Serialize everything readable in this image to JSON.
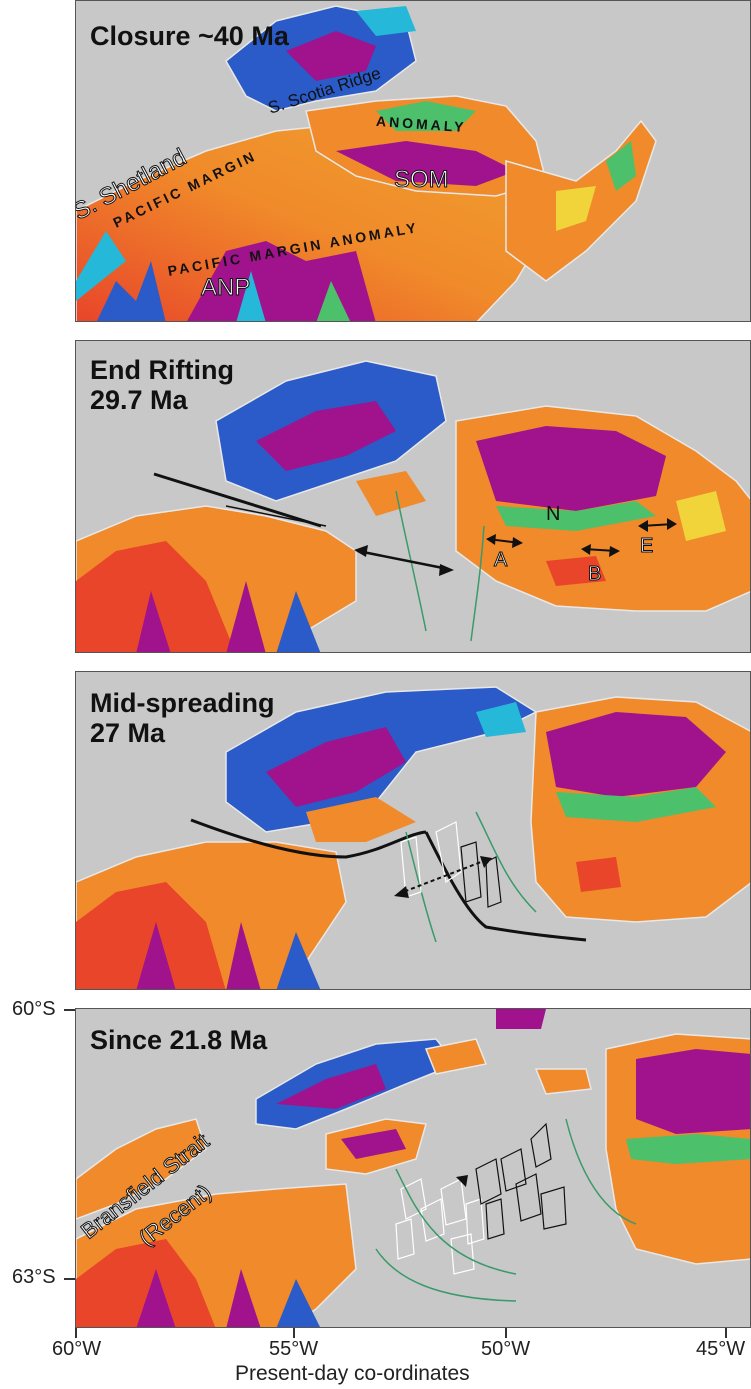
{
  "panels": [
    {
      "title": "Closure ~40 Ma",
      "labels": {
        "s_scotia_ridge": "S. Scotia Ridge",
        "anomaly": "ANOMALY",
        "s_shetland": "S. Shetland",
        "pacific_margin_upper": "PACIFIC MARGIN",
        "som": "SOM",
        "pacific_margin_anomaly": "PACIFIC MARGIN ANOMALY",
        "anp": "ANP"
      }
    },
    {
      "title_line1": "End Rifting",
      "title_line2": "29.7 Ma",
      "labels": {
        "n": "N",
        "a": "A",
        "b": "B",
        "e": "E"
      }
    },
    {
      "title_line1": "Mid-spreading",
      "title_line2": "27 Ma"
    },
    {
      "title": "Since 21.8 Ma",
      "labels": {
        "bransfield_line1": "Bransfield Strait",
        "bransfield_line2": "(Recent)"
      }
    }
  ],
  "axes": {
    "y_ticks": [
      "60°S",
      "63°S"
    ],
    "x_ticks": [
      "60°W",
      "55°W",
      "50°W",
      "45°W"
    ],
    "x_label": "Present-day co-ordinates"
  },
  "colors": {
    "background": "#c8c8c8",
    "red": "#e8452a",
    "orange": "#f08a2a",
    "yellow": "#f0d43a",
    "green": "#4cc06a",
    "cyan": "#26b8d8",
    "blue": "#2a5bc8",
    "magenta": "#a0138c",
    "outline": "#e8e8e8",
    "green_line": "#3a9a6a"
  }
}
